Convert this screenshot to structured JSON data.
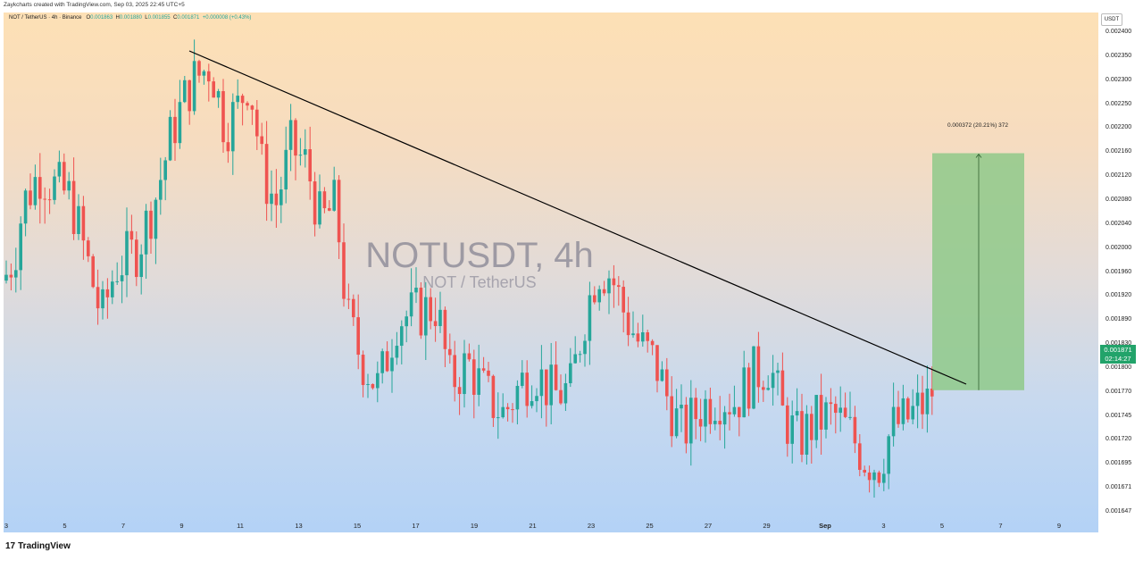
{
  "header": {
    "credit": "Zaykcharts created with TradingView.com, Sep 03, 2025 22:45 UTC+5"
  },
  "legend": {
    "symbol": "NOT / TetherUS · 4h · Binance",
    "open_label": "O",
    "open": "0.001863",
    "high_label": "H",
    "high": "0.001880",
    "low_label": "L",
    "low": "0.001855",
    "close_label": "C",
    "close": "0.001871",
    "change": "+0.000008 (+0.43%)"
  },
  "watermark": {
    "title": "NOTUSDT, 4h",
    "subtitle": "NOT / TetherUS"
  },
  "price_axis": {
    "currency": "USDT",
    "labels": [
      "0.002400",
      "0.002350",
      "0.002300",
      "0.002250",
      "0.002200",
      "0.002160",
      "0.002120",
      "0.002080",
      "0.002040",
      "0.002000",
      "0.001960",
      "0.001920",
      "0.001890",
      "0.001830",
      "0.001800",
      "0.001770",
      "0.001745",
      "0.001720",
      "0.001695",
      "0.001671",
      "0.001647"
    ],
    "current_price": "0.001871",
    "countdown": "02:14:27"
  },
  "time_axis": {
    "labels": [
      "3",
      "5",
      "7",
      "9",
      "11",
      "13",
      "15",
      "17",
      "19",
      "21",
      "23",
      "25",
      "27",
      "29",
      "Sep",
      "3",
      "5",
      "7",
      "9"
    ]
  },
  "measure": {
    "label": "0.000372 (20.21%) 372"
  },
  "branding": {
    "logo_text": "TradingView",
    "logo_mark": "17"
  },
  "colors": {
    "up": "#26a69a",
    "down": "#ef5350",
    "trendline": "#000000",
    "target_box": "#8fc98a",
    "price_tag": "#22a36a"
  },
  "chart_data": {
    "type": "candlestick",
    "title": "NOTUSDT, 4h",
    "x_axis": [
      "3",
      "5",
      "7",
      "9",
      "11",
      "13",
      "15",
      "17",
      "19",
      "21",
      "23",
      "25",
      "27",
      "29",
      "Sep",
      "3",
      "5",
      "7",
      "9"
    ],
    "y_range": [
      0.001647,
      0.0024
    ],
    "trendline": {
      "from": {
        "x": "9",
        "y": 0.00236
      },
      "to": {
        "x": "4",
        "y": 0.00182
      }
    },
    "target": {
      "from": 0.001838,
      "to": 0.00221,
      "change": "0.000372 (20.21%) 372"
    },
    "last_close": 0.001871
  }
}
